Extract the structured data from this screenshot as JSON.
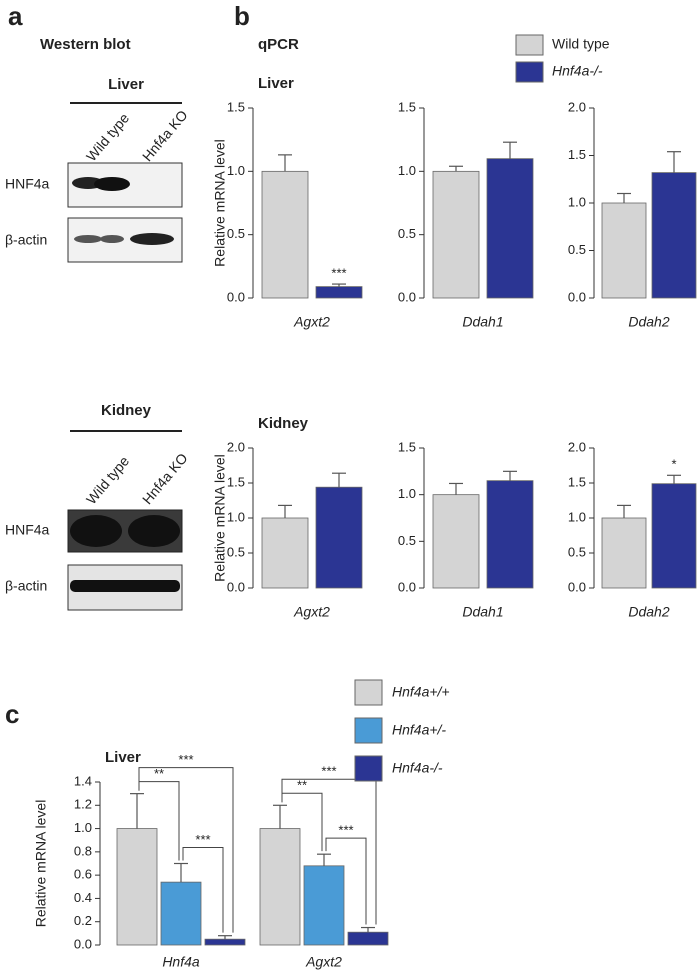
{
  "panel_labels": [
    "a",
    "b",
    "c"
  ],
  "qpcr_title": "qPCR",
  "western_blot": {
    "title": "Western blot",
    "sections": [
      {
        "tissue": "Liver",
        "lanes": [
          "Wild type",
          "Hnf4a KO"
        ],
        "rows": [
          "HNF4a",
          "β-actin"
        ]
      },
      {
        "tissue": "Kidney",
        "lanes": [
          "Wild type",
          "Hnf4a KO"
        ],
        "rows": [
          "HNF4a",
          "β-actin"
        ]
      }
    ]
  },
  "chart_data": [
    {
      "type": "bar",
      "title": "Liver",
      "y_label": "Relative mRNA level",
      "categories": [
        "Agxt2"
      ],
      "series": [
        {
          "name": "Wild type",
          "color": "#d4d4d4",
          "values": [
            1.0
          ],
          "errors": [
            0.13
          ]
        },
        {
          "name": "Hnf4a-/-",
          "color": "#2b3593",
          "values": [
            0.09
          ],
          "errors": [
            0.02
          ],
          "annotations": [
            "***"
          ]
        }
      ],
      "ylim": [
        0,
        1.5
      ],
      "yticks": [
        {
          "value": 0,
          "label": "0.0"
        },
        0.5,
        {
          "value": 1,
          "label": "1.0"
        },
        1.5
      ]
    },
    {
      "type": "bar",
      "categories": [
        "Ddah1"
      ],
      "series": [
        {
          "color": "#d4d4d4",
          "values": [
            1.0
          ],
          "errors": [
            0.04
          ]
        },
        {
          "color": "#2b3593",
          "values": [
            1.1
          ],
          "errors": [
            0.13
          ]
        }
      ],
      "ylim": [
        0,
        1.5
      ],
      "yticks": [
        {
          "value": 0,
          "label": "0.0"
        },
        0.5,
        {
          "value": 1,
          "label": "1.0"
        },
        1.5
      ]
    },
    {
      "type": "bar",
      "categories": [
        "Ddah2"
      ],
      "series": [
        {
          "color": "#d4d4d4",
          "values": [
            1.0
          ],
          "errors": [
            0.1
          ]
        },
        {
          "color": "#2b3593",
          "values": [
            1.32
          ],
          "errors": [
            0.22
          ]
        }
      ],
      "ylim": [
        0,
        2
      ],
      "yticks": [
        {
          "value": 0,
          "label": "0.0"
        },
        0.5,
        {
          "value": 1,
          "label": "1.0"
        },
        1.5,
        {
          "value": 2,
          "label": "2.0"
        }
      ]
    },
    {
      "type": "bar",
      "title": "Kidney",
      "y_label": "Relative mRNA level",
      "categories": [
        "Agxt2"
      ],
      "series": [
        {
          "color": "#d4d4d4",
          "values": [
            1.0
          ],
          "errors": [
            0.18
          ]
        },
        {
          "color": "#2b3593",
          "values": [
            1.44
          ],
          "errors": [
            0.2
          ]
        }
      ],
      "ylim": [
        0,
        2
      ],
      "yticks": [
        {
          "value": 0,
          "label": "0.0"
        },
        0.5,
        {
          "value": 1,
          "label": "1.0"
        },
        1.5,
        {
          "value": 2,
          "label": "2.0"
        }
      ]
    },
    {
      "type": "bar",
      "categories": [
        "Ddah1"
      ],
      "series": [
        {
          "color": "#d4d4d4",
          "values": [
            1.0
          ],
          "errors": [
            0.12
          ]
        },
        {
          "color": "#2b3593",
          "values": [
            1.15
          ],
          "errors": [
            0.1
          ]
        }
      ],
      "ylim": [
        0,
        1.5
      ],
      "yticks": [
        {
          "value": 0,
          "label": "0.0"
        },
        0.5,
        {
          "value": 1,
          "label": "1.0"
        },
        1.5
      ]
    },
    {
      "type": "bar",
      "categories": [
        "Ddah2"
      ],
      "series": [
        {
          "color": "#d4d4d4",
          "values": [
            1.0
          ],
          "errors": [
            0.18
          ]
        },
        {
          "color": "#2b3593",
          "values": [
            1.49
          ],
          "errors": [
            0.12
          ],
          "annotations": [
            "*"
          ]
        }
      ],
      "ylim": [
        0,
        2
      ],
      "yticks": [
        {
          "value": 0,
          "label": "0.0"
        },
        0.5,
        {
          "value": 1,
          "label": "1.0"
        },
        1.5,
        {
          "value": 2,
          "label": "2.0"
        }
      ]
    },
    {
      "type": "bar",
      "title": "Liver",
      "y_label": "Relative mRNA level",
      "categories": [
        "Hnf4a",
        "Agxt2"
      ],
      "series": [
        {
          "name": "Hnf4a+/+",
          "color": "#d4d4d4",
          "values": [
            1.0,
            1.0
          ],
          "errors": [
            0.3,
            0.2
          ]
        },
        {
          "name": "Hnf4a+/-",
          "color": "#4a9bd6",
          "values": [
            0.54,
            0.68
          ],
          "errors": [
            0.16,
            0.1
          ]
        },
        {
          "name": "Hnf4a-/-",
          "color": "#2b3593",
          "values": [
            0.05,
            0.11
          ],
          "errors": [
            0.03,
            0.04
          ]
        }
      ],
      "brackets": [
        [
          "**",
          "***",
          "***"
        ],
        [
          "**",
          "***",
          "***"
        ]
      ],
      "ylim": [
        0,
        1.4
      ],
      "yticks": [
        {
          "value": 0,
          "label": "0.0"
        },
        0.2,
        0.4,
        0.6,
        0.8,
        {
          "value": 1,
          "label": "1.0"
        },
        1.2,
        1.4
      ]
    }
  ]
}
